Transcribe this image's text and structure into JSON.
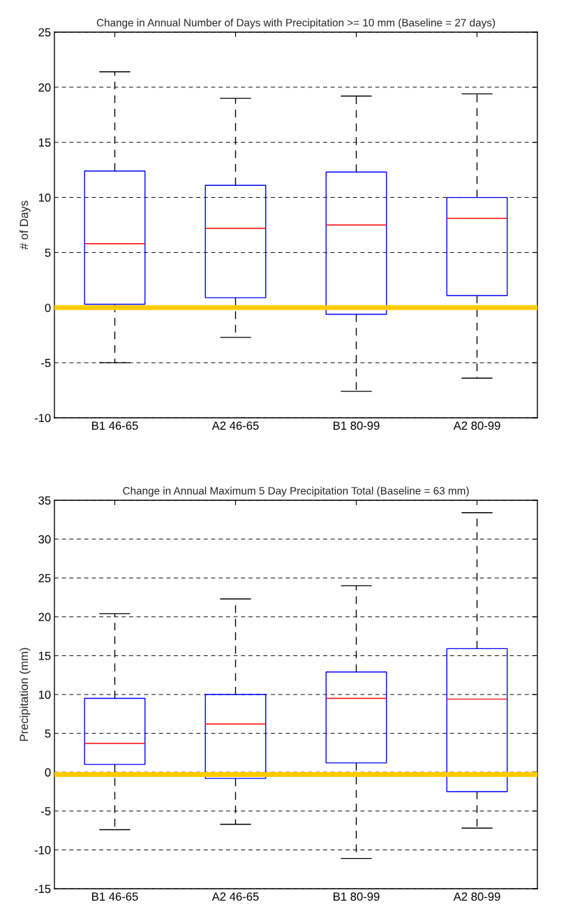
{
  "chart_data": [
    {
      "type": "box",
      "title": "Change in Annual Number of Days with Precipitation >= 10 mm (Baseline = 27 days)",
      "ylabel": "# of Days",
      "categories": [
        "B1 46-65",
        "A2 46-65",
        "B1 80-99",
        "A2 80-99"
      ],
      "boxes": [
        {
          "low": -5.0,
          "q1": 0.3,
          "median": 5.8,
          "q3": 12.4,
          "high": 21.4
        },
        {
          "low": -2.7,
          "q1": 0.9,
          "median": 7.2,
          "q3": 11.1,
          "high": 19.0
        },
        {
          "low": -7.6,
          "q1": -0.6,
          "median": 7.5,
          "q3": 12.3,
          "high": 19.2
        },
        {
          "low": -6.4,
          "q1": 1.1,
          "median": 8.1,
          "q3": 10.0,
          "high": 19.4
        }
      ],
      "ylim": [
        -10,
        25
      ],
      "yticks": [
        -10,
        -5,
        0,
        5,
        10,
        15,
        20,
        25
      ],
      "grid": "y",
      "ref_lines": [
        {
          "axis": "y",
          "value": 0,
          "color": "#ffcc00"
        }
      ]
    },
    {
      "type": "box",
      "title": "Change in Annual Maximum 5 Day Precipitation Total (Baseline = 63 mm)",
      "ylabel": "Precipitation (mm)",
      "categories": [
        "B1 46-65",
        "A2 46-65",
        "B1 80-99",
        "A2 80-99"
      ],
      "boxes": [
        {
          "low": -7.4,
          "q1": 1.0,
          "median": 3.7,
          "q3": 9.5,
          "high": 20.4
        },
        {
          "low": -6.7,
          "q1": -0.8,
          "median": 6.2,
          "q3": 10.0,
          "high": 22.3
        },
        {
          "low": -11.1,
          "q1": 1.2,
          "median": 9.5,
          "q3": 12.9,
          "high": 24.0
        },
        {
          "low": -7.2,
          "q1": -2.5,
          "median": 9.4,
          "q3": 15.9,
          "high": 33.4
        }
      ],
      "ylim": [
        -15,
        35
      ],
      "yticks": [
        -15,
        -10,
        -5,
        0,
        5,
        10,
        15,
        20,
        25,
        30,
        35
      ],
      "grid": "y",
      "ref_lines": [
        {
          "axis": "y",
          "value": -0.3,
          "color": "#ffcc00"
        }
      ]
    }
  ]
}
